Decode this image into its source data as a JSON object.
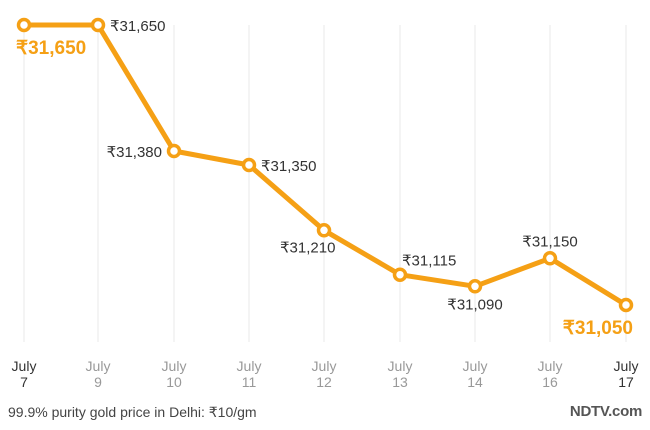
{
  "chart_data": {
    "type": "line",
    "title": "",
    "xlabel": "",
    "ylabel": "",
    "categories": [
      {
        "month": "July",
        "day": "7"
      },
      {
        "month": "July",
        "day": "9"
      },
      {
        "month": "July",
        "day": "10"
      },
      {
        "month": "July",
        "day": "11"
      },
      {
        "month": "July",
        "day": "12"
      },
      {
        "month": "July",
        "day": "13"
      },
      {
        "month": "July",
        "day": "14"
      },
      {
        "month": "July",
        "day": "16"
      },
      {
        "month": "July",
        "day": "17"
      }
    ],
    "values": [
      31650,
      31650,
      31380,
      31350,
      31210,
      31115,
      31090,
      31150,
      31050
    ],
    "labels": [
      "₹31,650",
      "₹31,650",
      "₹31,380",
      "₹31,350",
      "₹31,210",
      "₹31,115",
      "₹31,090",
      "₹31,150",
      "₹31,050"
    ],
    "label_placement": [
      "below-highlight",
      "right",
      "left",
      "right",
      "below-left",
      "above",
      "below",
      "above",
      "below-highlight"
    ],
    "ylim": [
      30960,
      31700
    ],
    "grid": "vertical",
    "highlight_ticks": [
      0,
      8
    ],
    "colors": {
      "line": "#f5a015",
      "highlight": "#f5a015",
      "grid": "#e8e8e8",
      "tick": "#333333",
      "tick_muted": "#999999"
    }
  },
  "caption": "99.9% purity gold price in Delhi: ₹10/gm",
  "brand": "NDTV.com"
}
